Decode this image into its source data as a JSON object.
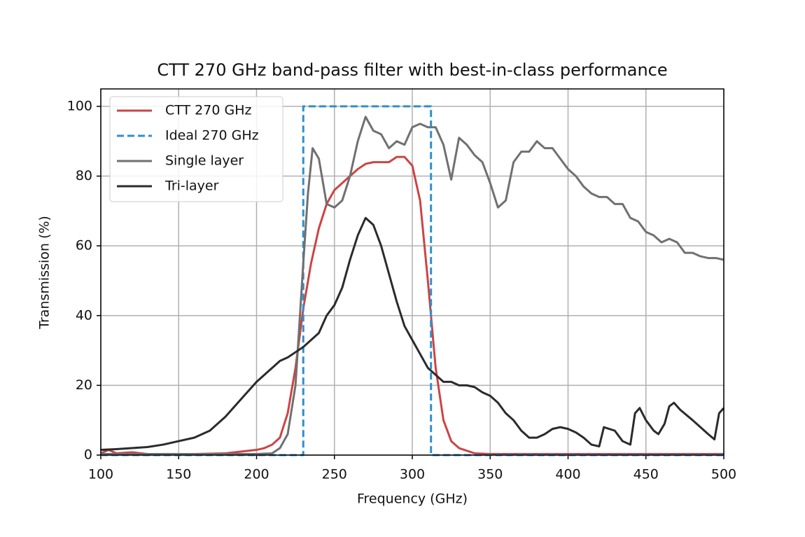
{
  "chart_data": {
    "type": "line",
    "title": "CTT 270 GHz band-pass filter with best-in-class performance",
    "x_label": "Frequency (GHz)",
    "y_label": "Transmission (%)",
    "xlim": [
      100,
      500
    ],
    "ylim": [
      0,
      105
    ],
    "xticks": [
      100,
      150,
      200,
      250,
      300,
      350,
      400,
      450,
      500
    ],
    "yticks": [
      0,
      20,
      40,
      60,
      80,
      100
    ],
    "grid": true,
    "legend": "upper left",
    "series": [
      {
        "name": "CTT 270 GHz",
        "color": "#cc4444",
        "linestyle": "solid",
        "x": [
          100,
          105,
          110,
          120,
          130,
          140,
          150,
          160,
          170,
          180,
          190,
          200,
          205,
          210,
          215,
          220,
          225,
          230,
          235,
          240,
          245,
          250,
          255,
          260,
          265,
          270,
          275,
          280,
          285,
          290,
          295,
          300,
          305,
          310,
          315,
          320,
          325,
          330,
          340,
          350,
          375,
          400,
          425,
          450,
          475,
          500
        ],
        "values": [
          0.5,
          1.5,
          0.5,
          0.8,
          0.3,
          0.3,
          0.3,
          0.3,
          0.4,
          0.5,
          1,
          1.5,
          2,
          3,
          5,
          12,
          25,
          42,
          55,
          65,
          72,
          76,
          78,
          80,
          82,
          83.5,
          84,
          84,
          84,
          85.5,
          85.5,
          83,
          73,
          50,
          25,
          10,
          4,
          2,
          0.5,
          0.3,
          0.3,
          0.3,
          0.3,
          0.3,
          0.3,
          0.3
        ]
      },
      {
        "name": "Ideal 270 GHz",
        "color": "#2e8fcf",
        "linestyle": "dashed",
        "x": [
          100,
          230,
          230,
          312,
          312,
          500
        ],
        "values": [
          0,
          0,
          100,
          100,
          0,
          0
        ]
      },
      {
        "name": "Single layer",
        "color": "#707070",
        "linestyle": "solid",
        "x": [
          100,
          120,
          140,
          160,
          180,
          200,
          210,
          215,
          220,
          225,
          230,
          233,
          236,
          240,
          245,
          250,
          255,
          260,
          265,
          270,
          275,
          280,
          285,
          290,
          295,
          300,
          305,
          310,
          315,
          320,
          325,
          330,
          335,
          340,
          345,
          350,
          355,
          360,
          365,
          370,
          375,
          380,
          385,
          390,
          395,
          400,
          405,
          410,
          415,
          420,
          425,
          430,
          435,
          440,
          445,
          450,
          455,
          460,
          465,
          470,
          475,
          480,
          485,
          490,
          495,
          500
        ],
        "values": [
          0.3,
          0.3,
          0.3,
          0.3,
          0.3,
          0.3,
          0.5,
          2,
          6,
          20,
          55,
          75,
          88,
          85,
          72,
          71,
          73,
          80,
          90,
          97,
          93,
          92,
          88,
          90,
          89,
          94,
          95,
          94,
          94,
          89,
          79,
          91,
          89,
          86,
          84,
          78,
          71,
          73,
          84,
          87,
          87,
          90,
          88,
          88,
          85,
          82,
          80,
          77,
          75,
          74,
          74,
          72,
          72,
          68,
          67,
          64,
          63,
          61,
          62,
          61,
          58,
          58,
          57,
          56.5,
          56.5,
          56
        ]
      },
      {
        "name": "Tri-layer",
        "color": "#2b2b2b",
        "linestyle": "solid",
        "x": [
          100,
          110,
          120,
          130,
          140,
          150,
          160,
          170,
          180,
          190,
          200,
          210,
          215,
          220,
          225,
          230,
          235,
          240,
          245,
          250,
          255,
          260,
          265,
          270,
          275,
          280,
          285,
          290,
          295,
          300,
          305,
          310,
          315,
          320,
          325,
          330,
          335,
          340,
          345,
          350,
          355,
          360,
          365,
          370,
          375,
          380,
          385,
          390,
          395,
          400,
          405,
          410,
          415,
          420,
          423,
          430,
          435,
          440,
          443,
          446,
          450,
          455,
          458,
          462,
          465,
          468,
          472,
          480,
          485,
          490,
          494,
          497,
          500
        ],
        "values": [
          1.5,
          1.7,
          2,
          2.3,
          3,
          4,
          5,
          7,
          11,
          16,
          21,
          25,
          27,
          28,
          29.5,
          31,
          33,
          35,
          40,
          43,
          48,
          56,
          63,
          68,
          66,
          60,
          52,
          44,
          37,
          33,
          29,
          25,
          23,
          21,
          21,
          20,
          20,
          19.5,
          18,
          17,
          15,
          12,
          10,
          7,
          5,
          5,
          6,
          7.5,
          8,
          7.5,
          6.5,
          5,
          3,
          2.5,
          8,
          7,
          4,
          3,
          12,
          13.5,
          10,
          7,
          6,
          9,
          14,
          15,
          13,
          10,
          8,
          6,
          4.5,
          12,
          13.5
        ]
      }
    ]
  }
}
